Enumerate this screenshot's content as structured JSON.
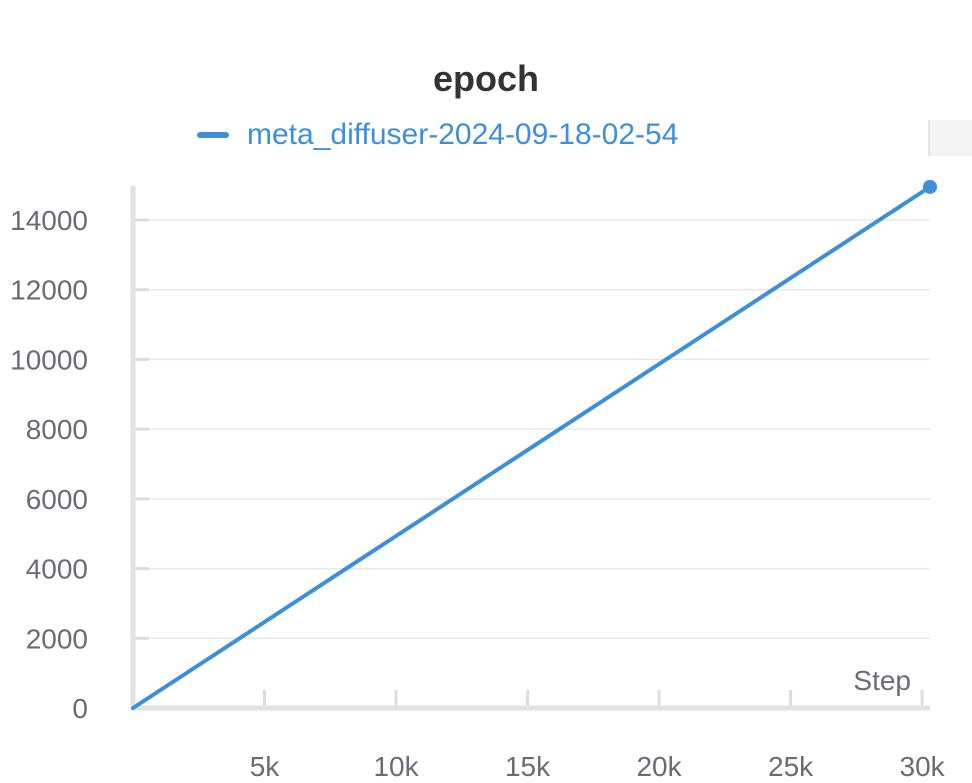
{
  "chart_data": {
    "type": "line",
    "title": "epoch",
    "xlabel": "Step",
    "ylabel": "",
    "xlim": [
      0,
      30300
    ],
    "ylim": [
      0,
      14000
    ],
    "x_ticks": [
      5000,
      10000,
      15000,
      20000,
      25000,
      30000
    ],
    "x_tick_labels": [
      "5k",
      "10k",
      "15k",
      "20k",
      "25k",
      "30k"
    ],
    "y_ticks": [
      0,
      2000,
      4000,
      6000,
      8000,
      10000,
      12000,
      14000
    ],
    "y_tick_labels": [
      "0",
      "2000",
      "4000",
      "6000",
      "8000",
      "10000",
      "12000",
      "14000"
    ],
    "grid": true,
    "legend_position": "top",
    "series": [
      {
        "name": "meta_diffuser-2024-09-18-02-54",
        "color": "#3d8fd9",
        "x": [
          0,
          30300
        ],
        "y": [
          0,
          14950
        ]
      }
    ]
  }
}
